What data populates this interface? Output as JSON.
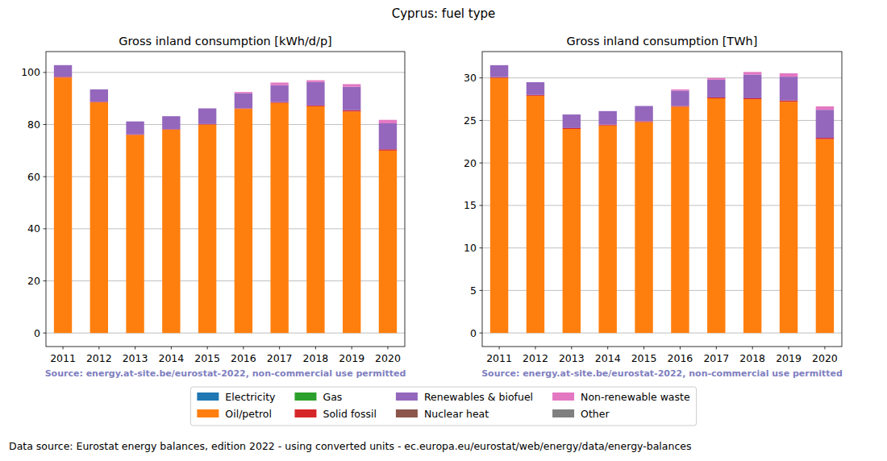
{
  "title": "Cyprus: fuel type",
  "footer": "Data source: Eurostat energy balances, edition 2022 - using converted units - ec.europa.eu/eurostat/web/energy/data/energy-balances",
  "chart_data": [
    {
      "type": "bar",
      "stacked": true,
      "grid": true,
      "legend": "bottom",
      "title": "Gross inland consumption [kWh/d/p]",
      "source": "Source: energy.at-site.be/eurostat-2022, non-commercial use permitted",
      "categories": [
        "2011",
        "2012",
        "2013",
        "2014",
        "2015",
        "2016",
        "2017",
        "2018",
        "2019",
        "2020"
      ],
      "ylim": [
        -5.2,
        108
      ],
      "yticks": [
        0,
        20,
        40,
        60,
        80,
        100
      ],
      "series": [
        {
          "name": "Electricity",
          "color": "#1f77b4",
          "values": [
            0,
            0,
            0,
            0,
            0,
            0,
            0,
            0,
            0,
            0
          ]
        },
        {
          "name": "Oil/petrol",
          "color": "#ff7f0e",
          "values": [
            98,
            88.5,
            76,
            78,
            80,
            86,
            88.3,
            87,
            85,
            70
          ]
        },
        {
          "name": "Gas",
          "color": "#2ca02c",
          "values": [
            0,
            0,
            0,
            0,
            0,
            0,
            0,
            0,
            0,
            0
          ]
        },
        {
          "name": "Solid fossil",
          "color": "#d62728",
          "values": [
            0.3,
            0.2,
            0.2,
            0.2,
            0.2,
            0.2,
            0.3,
            0.3,
            0.5,
            0.5
          ]
        },
        {
          "name": "Renewables & biofuel",
          "color": "#9467bd",
          "values": [
            4.5,
            4.8,
            5,
            5,
            6,
            5.8,
            6.5,
            9,
            9,
            10
          ]
        },
        {
          "name": "Nuclear heat",
          "color": "#8c564b",
          "values": [
            0,
            0,
            0,
            0,
            0,
            0,
            0,
            0,
            0,
            0
          ]
        },
        {
          "name": "Non-renewable waste",
          "color": "#e377c2",
          "values": [
            0,
            0,
            0,
            0,
            0,
            0.5,
            1,
            0.7,
            1,
            1.3
          ]
        },
        {
          "name": "Other",
          "color": "#7f7f7f",
          "values": [
            0,
            0,
            0,
            0,
            0,
            0,
            0,
            0,
            0,
            0
          ]
        }
      ]
    },
    {
      "type": "bar",
      "stacked": true,
      "grid": true,
      "title": "Gross inland consumption [TWh]",
      "source": "Source: energy.at-site.be/eurostat-2022, non-commercial use permitted",
      "categories": [
        "2011",
        "2012",
        "2013",
        "2014",
        "2015",
        "2016",
        "2017",
        "2018",
        "2019",
        "2020"
      ],
      "ylim": [
        -1.6,
        33.1
      ],
      "yticks": [
        0,
        5,
        10,
        15,
        20,
        25,
        30
      ],
      "series": [
        {
          "name": "Electricity",
          "color": "#1f77b4",
          "values": [
            0,
            0,
            0,
            0,
            0,
            0,
            0,
            0,
            0,
            0
          ]
        },
        {
          "name": "Oil/petrol",
          "color": "#ff7f0e",
          "values": [
            30,
            27.9,
            24,
            24.4,
            24.8,
            26.6,
            27.6,
            27.5,
            27.2,
            22.8
          ]
        },
        {
          "name": "Gas",
          "color": "#2ca02c",
          "values": [
            0,
            0,
            0,
            0,
            0,
            0,
            0,
            0,
            0,
            0
          ]
        },
        {
          "name": "Solid fossil",
          "color": "#d62728",
          "values": [
            0.1,
            0.1,
            0.1,
            0.1,
            0.1,
            0.1,
            0.1,
            0.1,
            0.15,
            0.15
          ]
        },
        {
          "name": "Renewables & biofuel",
          "color": "#9467bd",
          "values": [
            1.4,
            1.5,
            1.6,
            1.6,
            1.8,
            1.8,
            2.1,
            2.8,
            2.8,
            3.3
          ]
        },
        {
          "name": "Nuclear heat",
          "color": "#8c564b",
          "values": [
            0,
            0,
            0,
            0,
            0,
            0,
            0,
            0,
            0,
            0
          ]
        },
        {
          "name": "Non-renewable waste",
          "color": "#e377c2",
          "values": [
            0,
            0,
            0,
            0,
            0,
            0.15,
            0.2,
            0.3,
            0.4,
            0.4
          ]
        },
        {
          "name": "Other",
          "color": "#7f7f7f",
          "values": [
            0,
            0,
            0,
            0,
            0,
            0,
            0,
            0,
            0,
            0
          ]
        }
      ]
    }
  ]
}
